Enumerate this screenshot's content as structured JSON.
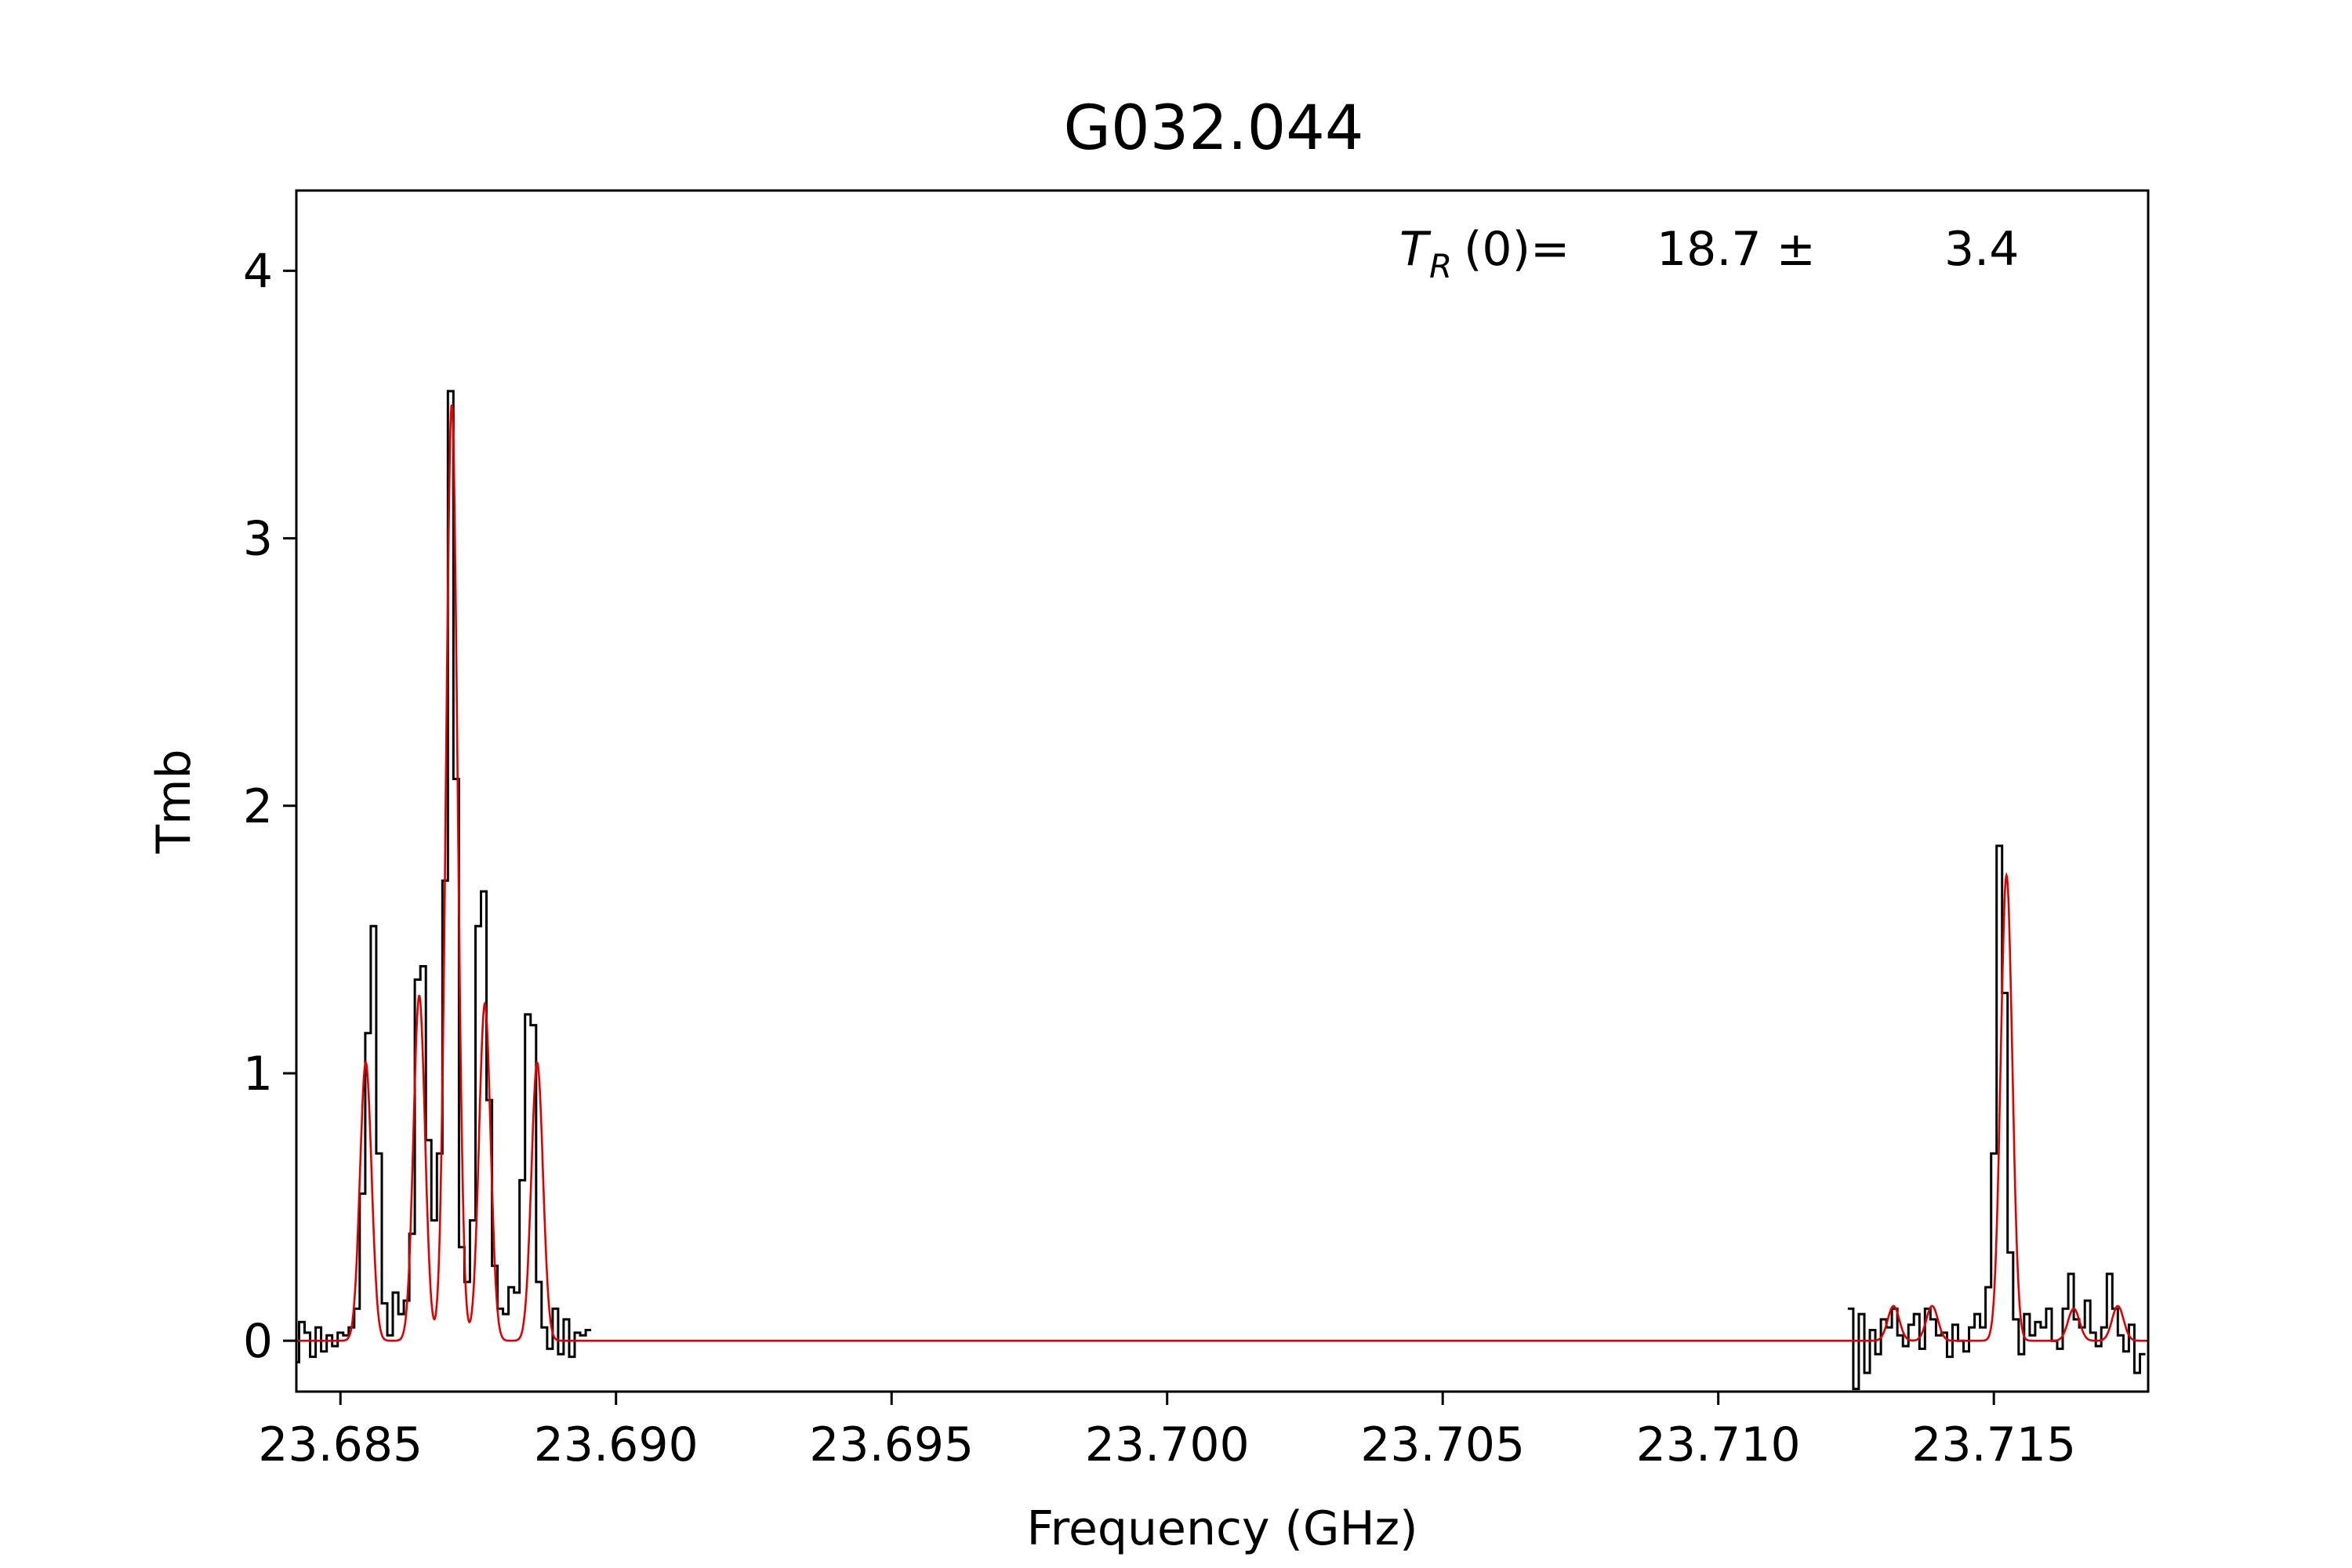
{
  "chart_data": {
    "type": "line",
    "title": "G032.044",
    "xlabel": "Frequency (GHz)",
    "ylabel": "Tmb",
    "xlim": [
      23.6842,
      23.7178
    ],
    "ylim": [
      -0.19,
      4.3
    ],
    "x_ticks": [
      23.685,
      23.69,
      23.695,
      23.7,
      23.705,
      23.71,
      23.715
    ],
    "x_tick_labels": [
      "23.685",
      "23.690",
      "23.695",
      "23.700",
      "23.705",
      "23.710",
      "23.715"
    ],
    "y_ticks": [
      0,
      1,
      2,
      3,
      4
    ],
    "y_tick_labels": [
      "0",
      "1",
      "2",
      "3",
      "4"
    ],
    "grid": false,
    "annotation": {
      "label": "(0)=",
      "symbol": "T",
      "subscript": "R",
      "value": "18.7 ±",
      "error": "3.4"
    },
    "series": [
      {
        "kind": "observed-spectrum",
        "style": "steps",
        "color": "#000000",
        "segments": [
          {
            "x": [
              23.6842,
              23.6843,
              23.6844,
              23.6845,
              23.6846,
              23.6847,
              23.6848,
              23.6849,
              23.685,
              23.6851,
              23.6852,
              23.6853,
              23.6854,
              23.6855,
              23.6856,
              23.6857,
              23.6858,
              23.6859,
              23.686,
              23.6861,
              23.6862,
              23.6863,
              23.6864,
              23.6865,
              23.6866,
              23.6867,
              23.6868,
              23.6869,
              23.687,
              23.6871,
              23.6872,
              23.6873,
              23.6874,
              23.6875,
              23.6876,
              23.6877,
              23.6878,
              23.6879,
              23.688,
              23.6881,
              23.6882,
              23.6883,
              23.6884,
              23.6885,
              23.6886,
              23.6887,
              23.6888,
              23.6889,
              23.689,
              23.6891,
              23.6892,
              23.6893,
              23.6894,
              23.6895
            ],
            "y": [
              -0.08,
              0.07,
              0.03,
              -0.06,
              0.05,
              -0.04,
              0.02,
              -0.02,
              0.03,
              0.02,
              0.05,
              0.12,
              0.55,
              1.15,
              1.55,
              0.7,
              0.14,
              0.02,
              0.18,
              0.1,
              0.15,
              0.4,
              1.35,
              1.4,
              0.75,
              0.45,
              0.7,
              1.72,
              3.55,
              2.1,
              0.35,
              0.22,
              0.45,
              1.55,
              1.68,
              0.9,
              0.28,
              0.12,
              0.1,
              0.2,
              0.18,
              0.6,
              1.22,
              1.18,
              0.22,
              0.05,
              -0.03,
              0.12,
              -0.05,
              0.08,
              -0.06,
              0.03,
              0.02,
              0.04
            ]
          },
          {
            "x": [
              23.7124,
              23.7125,
              23.7126,
              23.7127,
              23.7128,
              23.7129,
              23.713,
              23.7131,
              23.7132,
              23.7133,
              23.7134,
              23.7135,
              23.7136,
              23.7137,
              23.7138,
              23.7139,
              23.714,
              23.7141,
              23.7142,
              23.7143,
              23.7144,
              23.7145,
              23.7146,
              23.7147,
              23.7148,
              23.7149,
              23.715,
              23.7151,
              23.7152,
              23.7153,
              23.7154,
              23.7155,
              23.7156,
              23.7157,
              23.7158,
              23.7159,
              23.716,
              23.7161,
              23.7162,
              23.7163,
              23.7164,
              23.7165,
              23.7166,
              23.7167,
              23.7168,
              23.7169,
              23.717,
              23.7171,
              23.7172,
              23.7173,
              23.7174,
              23.7175,
              23.7176,
              23.7177
            ],
            "y": [
              0.12,
              -0.18,
              0.1,
              -0.12,
              0.04,
              -0.05,
              0.08,
              0.05,
              0.12,
              0.02,
              -0.02,
              0.06,
              0.1,
              -0.03,
              0.12,
              0.08,
              0.02,
              0.03,
              -0.06,
              0.06,
              0.0,
              -0.04,
              0.05,
              0.1,
              0.05,
              0.2,
              0.7,
              1.85,
              1.3,
              0.33,
              0.08,
              -0.05,
              0.1,
              0.02,
              0.07,
              0.05,
              0.12,
              0.0,
              -0.03,
              0.12,
              0.25,
              0.08,
              0.05,
              0.15,
              0.03,
              -0.02,
              0.05,
              0.25,
              0.12,
              0.02,
              -0.04,
              0.06,
              -0.12,
              -0.05
            ]
          }
        ]
      },
      {
        "kind": "model-fit",
        "style": "line",
        "color": "#e00000",
        "baseline": 0,
        "width_ghz": 0.000105,
        "components": [
          {
            "center": 23.68546,
            "amp": 1.04
          },
          {
            "center": 23.68643,
            "amp": 1.29
          },
          {
            "center": 23.68702,
            "amp": 3.5
          },
          {
            "center": 23.68762,
            "amp": 1.26
          },
          {
            "center": 23.68857,
            "amp": 1.04
          },
          {
            "center": 23.71318,
            "amp": 0.13
          },
          {
            "center": 23.71388,
            "amp": 0.13
          },
          {
            "center": 23.71523,
            "amp": 1.74
          },
          {
            "center": 23.71645,
            "amp": 0.12
          },
          {
            "center": 23.71725,
            "amp": 0.13
          }
        ]
      }
    ]
  }
}
